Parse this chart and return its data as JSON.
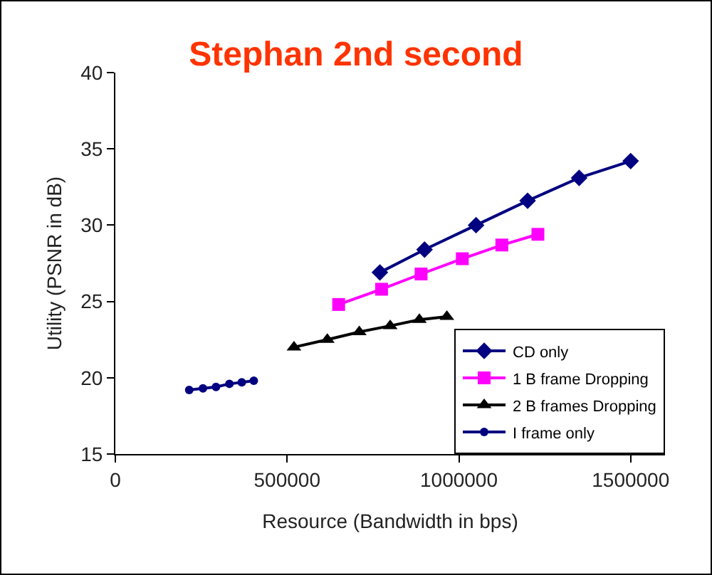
{
  "chart_data": {
    "type": "line",
    "title": "Stephan 2nd second",
    "xlabel": "Resource (Bandwidth in bps)",
    "ylabel": "Utility (PSNR in dB)",
    "xlim": [
      0,
      1600000
    ],
    "xticks": [
      0,
      500000,
      1000000,
      1500000
    ],
    "ylim": [
      15,
      40
    ],
    "yticks": [
      15,
      20,
      25,
      30,
      35,
      40
    ],
    "grid": false,
    "legend": "bottom right",
    "series": [
      {
        "name": "CD only",
        "color": "#000080",
        "marker": "diamond",
        "x": [
          770000,
          900000,
          1050000,
          1200000,
          1350000,
          1500000
        ],
        "values": [
          26.9,
          28.4,
          30.0,
          31.6,
          33.1,
          34.2
        ]
      },
      {
        "name": "1 B frame Dropping",
        "color": "#ff00ff",
        "marker": "square",
        "x": [
          650000,
          775000,
          890000,
          1010000,
          1125000,
          1230000
        ],
        "values": [
          24.8,
          25.8,
          26.8,
          27.8,
          28.7,
          29.4
        ]
      },
      {
        "name": "2 B frames Dropping",
        "color": "#000000",
        "marker": "triangle",
        "x": [
          520000,
          617000,
          710000,
          800000,
          885000,
          965000
        ],
        "values": [
          22.0,
          22.5,
          23.0,
          23.4,
          23.8,
          24.0
        ]
      },
      {
        "name": "I frame only",
        "color": "#000080",
        "marker": "circle",
        "x": [
          215000,
          255000,
          293000,
          332000,
          368000,
          403000
        ],
        "values": [
          19.2,
          19.3,
          19.4,
          19.6,
          19.7,
          19.8
        ]
      }
    ]
  }
}
